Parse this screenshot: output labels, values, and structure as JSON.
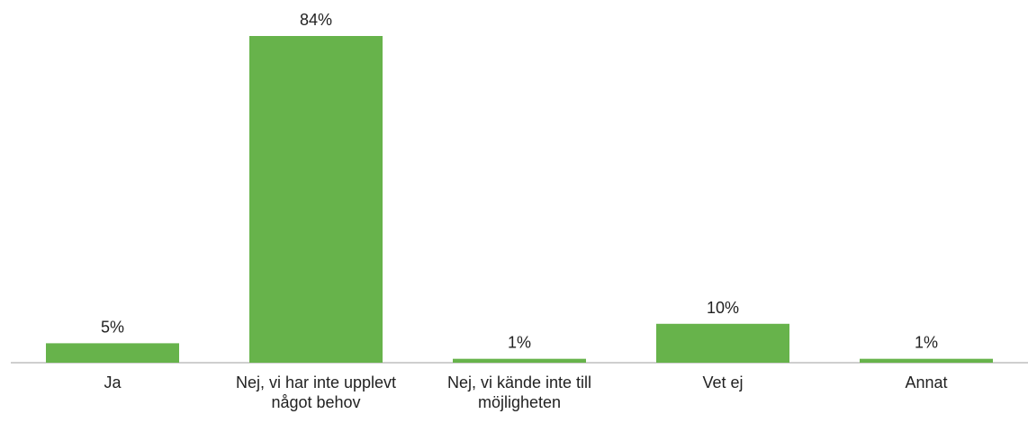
{
  "chart_data": {
    "type": "bar",
    "categories": [
      "Ja",
      "Nej, vi har inte upplevt något behov",
      "Nej, vi kände inte till möjligheten",
      "Vet ej",
      "Annat"
    ],
    "values": [
      5,
      84,
      1,
      10,
      1
    ],
    "value_labels": [
      "5%",
      "84%",
      "1%",
      "10%",
      "1%"
    ],
    "color": "#67b34b"
  }
}
